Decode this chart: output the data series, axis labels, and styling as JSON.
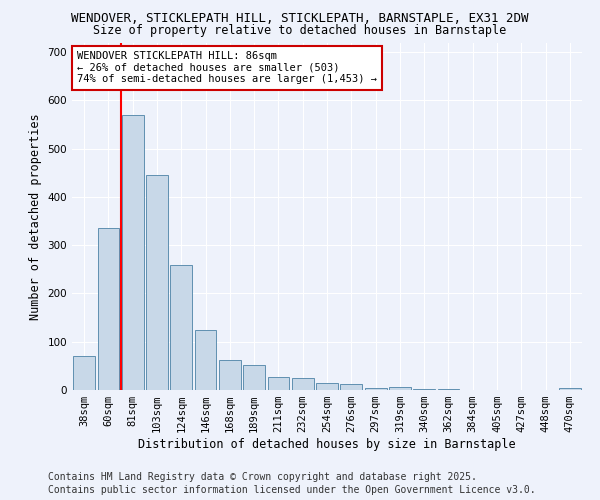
{
  "title1": "WENDOVER, STICKLEPATH HILL, STICKLEPATH, BARNSTAPLE, EX31 2DW",
  "title2": "Size of property relative to detached houses in Barnstaple",
  "xlabel": "Distribution of detached houses by size in Barnstaple",
  "ylabel": "Number of detached properties",
  "categories": [
    "38sqm",
    "60sqm",
    "81sqm",
    "103sqm",
    "124sqm",
    "146sqm",
    "168sqm",
    "189sqm",
    "211sqm",
    "232sqm",
    "254sqm",
    "276sqm",
    "297sqm",
    "319sqm",
    "340sqm",
    "362sqm",
    "384sqm",
    "405sqm",
    "427sqm",
    "448sqm",
    "470sqm"
  ],
  "values": [
    70,
    335,
    570,
    445,
    260,
    125,
    62,
    52,
    27,
    25,
    14,
    13,
    4,
    6,
    3,
    2,
    1,
    1,
    1,
    1,
    5
  ],
  "bar_color": "#c8d8e8",
  "bar_edge_color": "#6090b0",
  "red_line_index": 1.5,
  "annotation_title": "WENDOVER STICKLEPATH HILL: 86sqm",
  "annotation_line1": "← 26% of detached houses are smaller (503)",
  "annotation_line2": "74% of semi-detached houses are larger (1,453) →",
  "annotation_box_color": "#ffffff",
  "annotation_box_edge_color": "#cc0000",
  "ylim": [
    0,
    720
  ],
  "yticks": [
    0,
    100,
    200,
    300,
    400,
    500,
    600,
    700
  ],
  "background_color": "#eef2fb",
  "grid_color": "#ffffff",
  "footer_line1": "Contains HM Land Registry data © Crown copyright and database right 2025.",
  "footer_line2": "Contains public sector information licensed under the Open Government Licence v3.0.",
  "title_fontsize": 9.0,
  "subtitle_fontsize": 8.5,
  "axis_label_fontsize": 8.5,
  "tick_fontsize": 7.5,
  "annotation_fontsize": 7.5,
  "footer_fontsize": 7.0
}
